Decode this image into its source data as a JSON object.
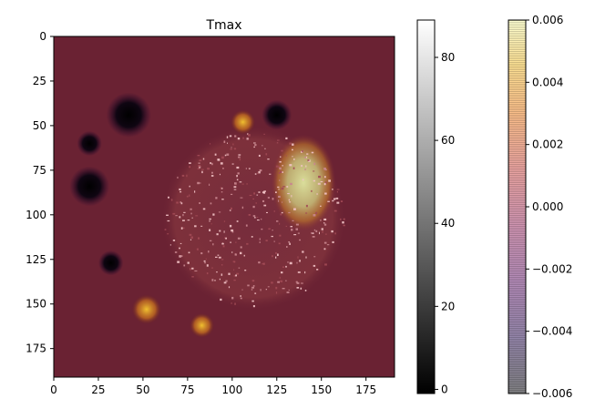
{
  "chart_data": {
    "type": "heatmap",
    "title": "Tmax",
    "xlabel": "",
    "ylabel": "",
    "xlim": [
      0,
      191
    ],
    "ylim": [
      191,
      0
    ],
    "x_ticks": [
      0,
      25,
      50,
      75,
      100,
      125,
      150,
      175
    ],
    "y_ticks": [
      0,
      25,
      50,
      75,
      100,
      125,
      150,
      175
    ],
    "layers": [
      {
        "colormap": "gray",
        "vmin": -1,
        "vmax": 89,
        "colorbar_ticks": [
          "0",
          "20",
          "40",
          "60",
          "80"
        ],
        "colorbar_tick_values": [
          0,
          20,
          40,
          60,
          80
        ],
        "features": [
          {
            "shape": "dark-spot",
            "x": 42,
            "y": 44,
            "radius": 9
          },
          {
            "shape": "dark-spot",
            "x": 20,
            "y": 84,
            "radius": 8
          },
          {
            "shape": "dark-spot",
            "x": 125,
            "y": 44,
            "radius": 6
          },
          {
            "shape": "dark-spot",
            "x": 20,
            "y": 60,
            "radius": 5
          },
          {
            "shape": "dark-spot",
            "x": 32,
            "y": 127,
            "radius": 5
          },
          {
            "shape": "bright-disc",
            "x": 112,
            "y": 102,
            "radius": 52
          }
        ]
      },
      {
        "colormap": "inferno",
        "alpha": 0.5,
        "vmin": -0.006,
        "vmax": 0.006,
        "colorbar_ticks": [
          "0.006",
          "0.004",
          "0.002",
          "0.000",
          "−0.002",
          "−0.004",
          "−0.006"
        ],
        "colorbar_tick_values": [
          0.006,
          0.004,
          0.002,
          0.0,
          -0.002,
          -0.004,
          -0.006
        ],
        "features": [
          {
            "shape": "hot-lobe",
            "x": 140,
            "y": 82,
            "radius": 18
          },
          {
            "shape": "hot-spot",
            "x": 52,
            "y": 153,
            "radius": 6
          },
          {
            "shape": "hot-spot",
            "x": 83,
            "y": 162,
            "radius": 5
          },
          {
            "shape": "hot-spot",
            "x": 106,
            "y": 48,
            "radius": 5
          }
        ]
      }
    ],
    "grid": false
  }
}
